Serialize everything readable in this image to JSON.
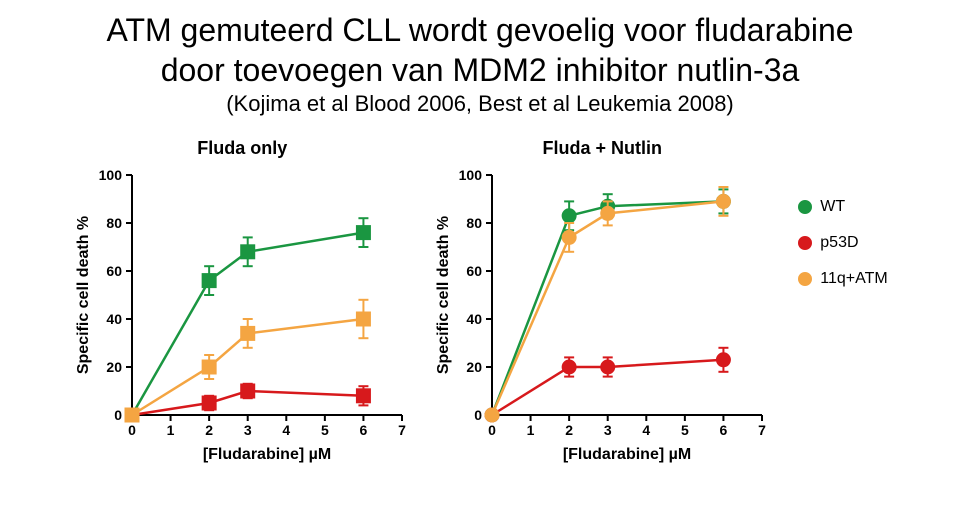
{
  "title_line1": "ATM gemuteerd CLL wordt gevoelig voor fludarabine",
  "title_line2": "door toevoegen van MDM2 inhibitor nutlin-3a",
  "title_sub": "(Kojima et al Blood 2006, Best et al Leukemia 2008)",
  "colors": {
    "WT": "#1a9641",
    "p53D": "#d7191c",
    "11qATM": "#f4a542",
    "axis": "#000000",
    "bg": "#ffffff"
  },
  "legend": [
    {
      "key": "WT",
      "label": "WT",
      "color": "#1a9641",
      "shape": "circle"
    },
    {
      "key": "p53D",
      "label": "p53D",
      "color": "#d7191c",
      "shape": "circle"
    },
    {
      "key": "11qATM",
      "label": "11q+ATM",
      "color": "#f4a542",
      "shape": "circle"
    }
  ],
  "axes": {
    "xlabel": "[Fludarabine] µM",
    "ylabel": "Specific cell death %",
    "xlim": [
      0,
      7
    ],
    "ylim": [
      0,
      100
    ],
    "xticks": [
      0,
      1,
      2,
      3,
      4,
      5,
      6,
      7
    ],
    "yticks": [
      0,
      20,
      40,
      60,
      80,
      100
    ],
    "title_fontsize": 18,
    "label_fontsize": 16,
    "tick_fontsize": 14,
    "line_width": 2.5,
    "marker_size": 7,
    "error_cap": 5
  },
  "charts": [
    {
      "title": "Fluda only",
      "series": [
        {
          "key": "WT",
          "color": "#1a9641",
          "marker": "square",
          "x": [
            0,
            2,
            3,
            6
          ],
          "y": [
            0,
            56,
            68,
            76
          ],
          "err": [
            0,
            6,
            6,
            6
          ]
        },
        {
          "key": "p53D",
          "color": "#d7191c",
          "marker": "square",
          "x": [
            0,
            2,
            3,
            6
          ],
          "y": [
            0,
            5,
            10,
            8
          ],
          "err": [
            0,
            3,
            3,
            4
          ]
        },
        {
          "key": "11qATM",
          "color": "#f4a542",
          "marker": "square",
          "x": [
            0,
            2,
            3,
            6
          ],
          "y": [
            0,
            20,
            34,
            40
          ],
          "err": [
            0,
            5,
            6,
            8
          ]
        }
      ]
    },
    {
      "title": "Fluda + Nutlin",
      "series": [
        {
          "key": "WT",
          "color": "#1a9641",
          "marker": "circle",
          "x": [
            0,
            2,
            3,
            6
          ],
          "y": [
            0,
            83,
            87,
            89
          ],
          "err": [
            0,
            6,
            5,
            5
          ]
        },
        {
          "key": "p53D",
          "color": "#d7191c",
          "marker": "circle",
          "x": [
            0,
            2,
            3,
            6
          ],
          "y": [
            0,
            20,
            20,
            23
          ],
          "err": [
            0,
            4,
            4,
            5
          ]
        },
        {
          "key": "11qATM",
          "color": "#f4a542",
          "marker": "circle",
          "x": [
            0,
            2,
            3,
            6
          ],
          "y": [
            0,
            74,
            84,
            89
          ],
          "err": [
            0,
            6,
            5,
            6
          ]
        }
      ]
    }
  ]
}
